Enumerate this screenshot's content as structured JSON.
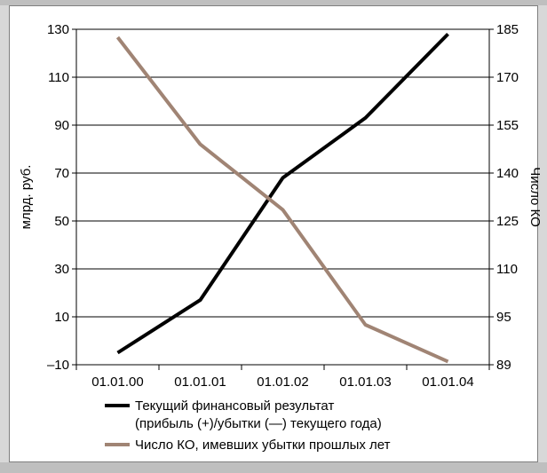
{
  "chart_data": {
    "type": "line",
    "categories": [
      "01.01.00",
      "01.01.01",
      "01.01.02",
      "01.01.03",
      "01.01.04"
    ],
    "y_left": {
      "label": "млрд. руб.",
      "ticks": [
        -10,
        10,
        30,
        50,
        70,
        90,
        110,
        130
      ],
      "tick_labels": [
        "–10",
        "10",
        "30",
        "50",
        "70",
        "90",
        "110",
        "130"
      ],
      "range": [
        -10,
        130
      ]
    },
    "y_right": {
      "label": "Число КО",
      "tick_labels": [
        "89",
        "95",
        "110",
        "125",
        "140",
        "155",
        "170",
        "185"
      ]
    },
    "grid": true,
    "legend_position": "bottom",
    "series": [
      {
        "name": "Текущий финансовый результат (прибыль (+)/убытки (—) текущего года)",
        "legend_lines": [
          "Текущий финансовый результат",
          "(прибыль (+)/убытки (—) текущего года)"
        ],
        "axis": "left",
        "color": "#000000",
        "values": [
          -5,
          17,
          68,
          93,
          128
        ]
      },
      {
        "name": "Число КО, имевших убытки прошлых лет",
        "legend_lines": [
          "Число КО, имевших убытки прошлых лет"
        ],
        "axis": "right",
        "color": "#a08474",
        "values": [
          182.5,
          149,
          128.5,
          94,
          89.4
        ]
      }
    ]
  }
}
